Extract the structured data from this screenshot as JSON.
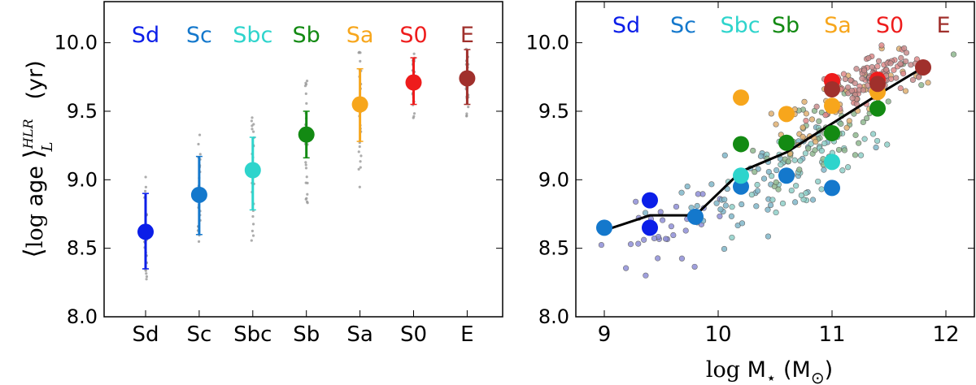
{
  "colors": {
    "Sd": "#0b1ee8",
    "Sc": "#1478cc",
    "Sbc": "#2ed4cc",
    "Sb": "#138a13",
    "Sa": "#f7a61c",
    "S0": "#ee1c1c",
    "E": "#a0302c",
    "line": "#000000",
    "gray_dots": "#999999"
  },
  "figure": {
    "ylabel_parts": {
      "open": "⟨",
      "log": "log",
      "age": " age ",
      "close": "⟩",
      "sup": "HLR",
      "sub": "L",
      "unit": "(yr)"
    },
    "xlabel_parts": {
      "log": "log",
      "M": " M",
      "star": "⋆",
      "unit_open": " (M",
      "sun": "⊙",
      "unit_close": ")"
    }
  },
  "chart_data": [
    {
      "type": "scatter",
      "panel": "left",
      "categories": [
        "Sd",
        "Sc",
        "Sbc",
        "Sb",
        "Sa",
        "S0",
        "E"
      ],
      "top_labels": [
        "Sd",
        "Sc",
        "Sbc",
        "Sb",
        "Sa",
        "S0",
        "E"
      ],
      "y_ticks": [
        "8.0",
        "8.5",
        "9.0",
        "9.5",
        "10.0"
      ],
      "ylim": [
        8.0,
        10.3
      ],
      "means": [
        8.62,
        8.89,
        9.07,
        9.33,
        9.55,
        9.71,
        9.74
      ],
      "errors": [
        [
          8.35,
          8.9
        ],
        [
          8.6,
          9.17
        ],
        [
          8.78,
          9.31
        ],
        [
          9.16,
          9.5
        ],
        [
          9.28,
          9.81
        ],
        [
          9.55,
          9.89
        ],
        [
          9.55,
          9.95
        ]
      ],
      "scatter_ranges": [
        [
          8.22,
          9.04
        ],
        [
          8.43,
          9.37
        ],
        [
          8.52,
          9.47
        ],
        [
          8.82,
          9.76
        ],
        [
          8.94,
          9.95
        ],
        [
          9.44,
          9.93
        ],
        [
          9.45,
          9.97
        ]
      ]
    },
    {
      "type": "scatter",
      "panel": "right",
      "top_labels": [
        "Sd",
        "Sc",
        "Sbc",
        "Sb",
        "Sa",
        "S0",
        "E"
      ],
      "x_ticks": [
        "9",
        "10",
        "11",
        "12"
      ],
      "y_ticks": [
        "8.0",
        "8.5",
        "9.0",
        "9.5",
        "10.0"
      ],
      "xlim": [
        8.75,
        12.25
      ],
      "ylim": [
        8.0,
        10.3
      ],
      "binned_points": [
        {
          "type": "Sd",
          "x": 9.4,
          "y": 8.65
        },
        {
          "type": "Sd",
          "x": 9.4,
          "y": 8.85
        },
        {
          "type": "Sc",
          "x": 9.0,
          "y": 8.65
        },
        {
          "type": "Sc",
          "x": 9.8,
          "y": 8.73
        },
        {
          "type": "Sc",
          "x": 10.2,
          "y": 8.95
        },
        {
          "type": "Sc",
          "x": 10.6,
          "y": 9.03
        },
        {
          "type": "Sc",
          "x": 11.0,
          "y": 8.94
        },
        {
          "type": "Sbc",
          "x": 10.2,
          "y": 9.03
        },
        {
          "type": "Sbc",
          "x": 11.0,
          "y": 9.13
        },
        {
          "type": "Sb",
          "x": 10.2,
          "y": 9.26
        },
        {
          "type": "Sb",
          "x": 10.6,
          "y": 9.27
        },
        {
          "type": "Sb",
          "x": 11.0,
          "y": 9.34
        },
        {
          "type": "Sb",
          "x": 11.4,
          "y": 9.52
        },
        {
          "type": "Sa",
          "x": 10.2,
          "y": 9.6
        },
        {
          "type": "Sa",
          "x": 10.6,
          "y": 9.48
        },
        {
          "type": "Sa",
          "x": 11.0,
          "y": 9.54
        },
        {
          "type": "Sa",
          "x": 11.4,
          "y": 9.64
        },
        {
          "type": "S0",
          "x": 11.0,
          "y": 9.72
        },
        {
          "type": "S0",
          "x": 11.4,
          "y": 9.73
        },
        {
          "type": "E",
          "x": 11.0,
          "y": 9.66
        },
        {
          "type": "E",
          "x": 11.4,
          "y": 9.7
        },
        {
          "type": "E",
          "x": 11.8,
          "y": 9.82
        }
      ],
      "trend_line": {
        "x": [
          9.0,
          9.4,
          9.8,
          10.2,
          10.6,
          11.0,
          11.4,
          11.8
        ],
        "y": [
          8.63,
          8.74,
          8.74,
          9.06,
          9.2,
          9.41,
          9.62,
          9.82
        ]
      }
    }
  ]
}
